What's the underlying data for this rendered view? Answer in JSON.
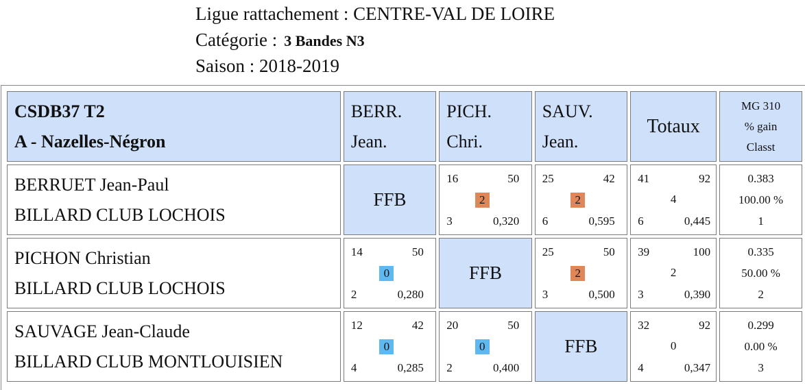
{
  "header": {
    "ligue": "Ligue rattachement : CENTRE-VAL DE LOIRE",
    "categorie_label": "Catégorie :",
    "categorie_value": "3 Bandes N3",
    "saison": "Saison : 2018-2019"
  },
  "table": {
    "team_line1": "CSDB37 T2",
    "team_line2": "A - Nazelles-Négron",
    "columns": [
      {
        "line1": "BERR.",
        "line2": "Jean."
      },
      {
        "line1": "PICH.",
        "line2": "Chri."
      },
      {
        "line1": "SAUV.",
        "line2": "Jean."
      }
    ],
    "totals_label": "Totaux",
    "mg_line1": "MG 310",
    "mg_line2": "% gain",
    "mg_line3": "Classt",
    "ffb": "FFB",
    "rows": [
      {
        "name": "BERRUET Jean-Paul",
        "club": "BILLARD CLUB LOCHOIS",
        "cells": [
          null,
          {
            "tl": "16",
            "tr": "50",
            "mid": "2",
            "result": "win",
            "bl": "3",
            "br": "0,320"
          },
          {
            "tl": "25",
            "tr": "42",
            "mid": "2",
            "result": "win",
            "bl": "6",
            "br": "0,595"
          }
        ],
        "totals": {
          "tl": "41",
          "tr": "92",
          "mid": "4",
          "bl": "6",
          "br": "0,445"
        },
        "mg": {
          "avg": "0.383",
          "pct": "100.00 %",
          "rank": "1"
        }
      },
      {
        "name": "PICHON Christian",
        "club": "BILLARD CLUB LOCHOIS",
        "cells": [
          {
            "tl": "14",
            "tr": "50",
            "mid": "0",
            "result": "loss",
            "bl": "2",
            "br": "0,280"
          },
          null,
          {
            "tl": "25",
            "tr": "50",
            "mid": "2",
            "result": "win",
            "bl": "3",
            "br": "0,500"
          }
        ],
        "totals": {
          "tl": "39",
          "tr": "100",
          "mid": "2",
          "bl": "3",
          "br": "0,390"
        },
        "mg": {
          "avg": "0.335",
          "pct": "50.00 %",
          "rank": "2"
        }
      },
      {
        "name": "SAUVAGE Jean-Claude",
        "club": "BILLARD CLUB MONTLOUISIEN",
        "cells": [
          {
            "tl": "12",
            "tr": "42",
            "mid": "0",
            "result": "loss",
            "bl": "4",
            "br": "0,285"
          },
          {
            "tl": "20",
            "tr": "50",
            "mid": "0",
            "result": "loss",
            "bl": "2",
            "br": "0,400"
          },
          null
        ],
        "totals": {
          "tl": "32",
          "tr": "92",
          "mid": "0",
          "bl": "4",
          "br": "0,347"
        },
        "mg": {
          "avg": "0.299",
          "pct": "0.00 %",
          "rank": "3"
        }
      }
    ]
  }
}
